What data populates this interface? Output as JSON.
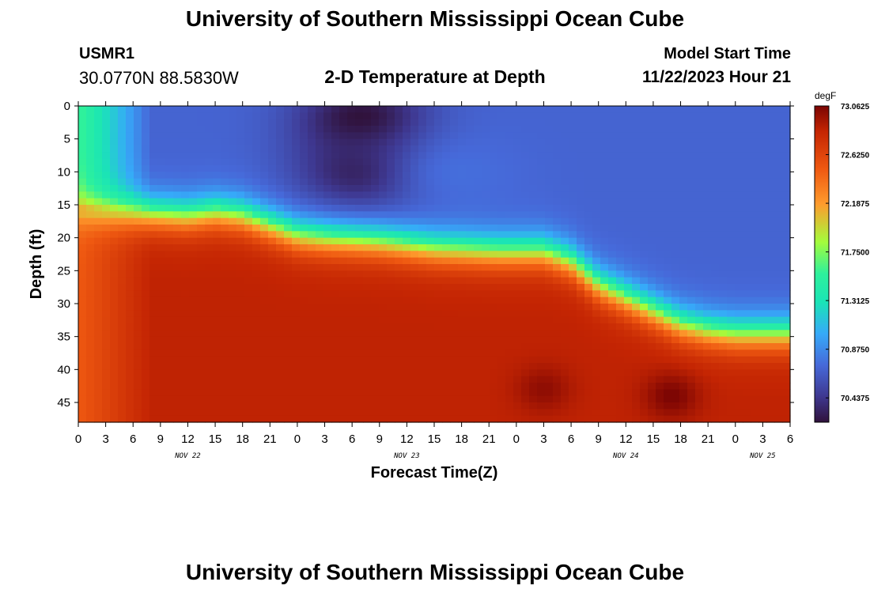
{
  "header": {
    "main_title": "University of Southern Mississippi Ocean Cube",
    "station_id": "USMR1",
    "station_coords": "30.0770N  88.5830W",
    "plot_title": "2-D Temperature at Depth",
    "model_label": "Model Start Time",
    "model_time": "11/22/2023 Hour 21"
  },
  "footer": {
    "title": "University of Southern Mississippi Ocean Cube"
  },
  "chart_data": {
    "type": "heatmap",
    "title": "2-D Temperature at Depth",
    "xlabel": "Forecast Time(Z)",
    "ylabel": "Depth (ft)",
    "units": "degF",
    "x_hours_range": [
      0,
      78
    ],
    "y_depth_range": [
      0,
      48
    ],
    "x_ticks": [
      "0",
      "3",
      "6",
      "9",
      "12",
      "15",
      "18",
      "21",
      "0",
      "3",
      "6",
      "9",
      "12",
      "15",
      "18",
      "21",
      "0",
      "3",
      "6",
      "9",
      "12",
      "15",
      "18",
      "21",
      "0",
      "3",
      "6"
    ],
    "x_tick_hours": [
      0,
      3,
      6,
      9,
      12,
      15,
      18,
      21,
      24,
      27,
      30,
      33,
      36,
      39,
      42,
      45,
      48,
      51,
      54,
      57,
      60,
      63,
      66,
      69,
      72,
      75,
      78
    ],
    "date_labels": [
      {
        "text": "NOV 22",
        "hour": 12
      },
      {
        "text": "NOV 23",
        "hour": 36
      },
      {
        "text": "NOV 24",
        "hour": 60
      },
      {
        "text": "NOV 25",
        "hour": 75
      }
    ],
    "y_ticks": [
      0,
      5,
      10,
      15,
      20,
      25,
      30,
      35,
      40,
      45
    ],
    "colorbar": {
      "min": 70.2188,
      "max": 73.0625,
      "labels": [
        "73.0625",
        "72.6250",
        "72.1875",
        "71.7500",
        "71.3125",
        "70.8750",
        "70.4375"
      ],
      "label_values": [
        73.0625,
        72.625,
        72.1875,
        71.75,
        71.3125,
        70.875,
        70.4375
      ]
    },
    "thermocline_depth_ft": [
      {
        "hour": 0,
        "depth": 16
      },
      {
        "hour": 6,
        "depth": 16
      },
      {
        "hour": 12,
        "depth": 16.5
      },
      {
        "hour": 15,
        "depth": 16
      },
      {
        "hour": 18,
        "depth": 16.5
      },
      {
        "hour": 21,
        "depth": 18
      },
      {
        "hour": 24,
        "depth": 19.5
      },
      {
        "hour": 27,
        "depth": 20
      },
      {
        "hour": 33,
        "depth": 20.5
      },
      {
        "hour": 39,
        "depth": 21.5
      },
      {
        "hour": 46,
        "depth": 22
      },
      {
        "hour": 51,
        "depth": 22
      },
      {
        "hour": 54,
        "depth": 23.5
      },
      {
        "hour": 57,
        "depth": 27
      },
      {
        "hour": 60,
        "depth": 29
      },
      {
        "hour": 63,
        "depth": 31
      },
      {
        "hour": 66,
        "depth": 33
      },
      {
        "hour": 69,
        "depth": 34
      },
      {
        "hour": 72,
        "depth": 34.5
      },
      {
        "hour": 78,
        "depth": 34.5
      }
    ],
    "upper_layer_cold_cores": [
      {
        "hour": 31,
        "depth": 2,
        "temp": 70.2
      },
      {
        "hour": 31,
        "depth": 10,
        "temp": 70.3
      },
      {
        "hour": 42,
        "depth": 10,
        "temp": 70.75
      }
    ],
    "deep_warm_cores": [
      {
        "hour": 51,
        "depth": 43,
        "temp": 73.0
      },
      {
        "hour": 65,
        "depth": 44,
        "temp": 73.06
      }
    ],
    "surface_cold_temp": 70.7,
    "deep_temp": 72.85,
    "near_shore_temp": 71.6
  }
}
